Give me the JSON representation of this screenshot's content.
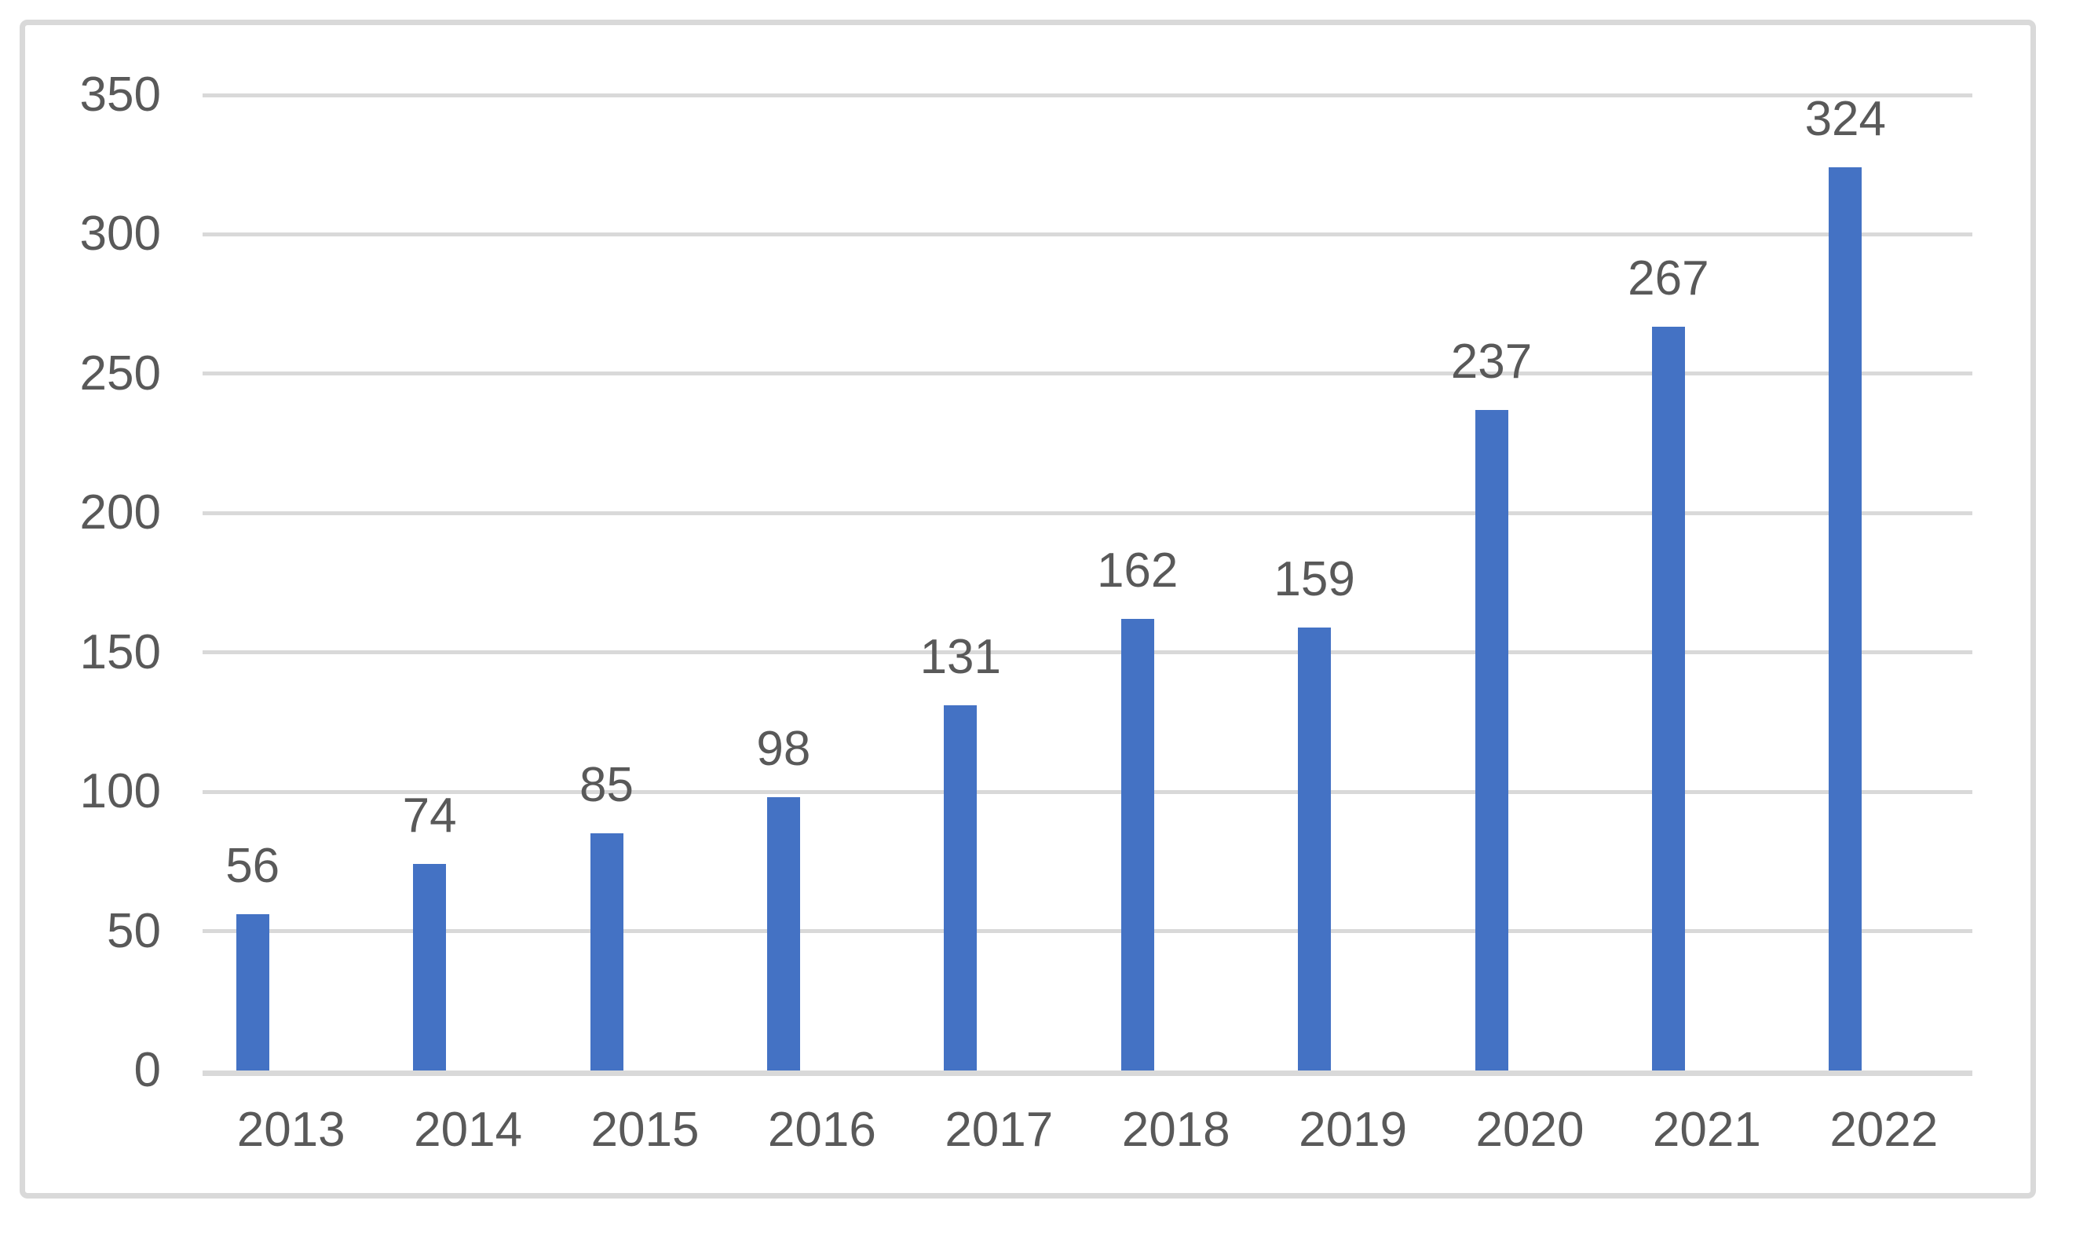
{
  "chart_data": {
    "type": "bar",
    "title": "",
    "xlabel": "",
    "ylabel": "",
    "categories": [
      "2013",
      "2014",
      "2015",
      "2016",
      "2017",
      "2018",
      "2019",
      "2020",
      "2021",
      "2022"
    ],
    "values": [
      56,
      74,
      85,
      98,
      131,
      162,
      159,
      237,
      267,
      324
    ],
    "data_labels_shown": true,
    "ylim": [
      0,
      350
    ],
    "yticks": [
      0,
      50,
      100,
      150,
      200,
      250,
      300,
      350
    ],
    "grid": "horizontal",
    "legend": "none",
    "colors": {
      "bar": "#4472C4",
      "gridline": "#D9D9D9",
      "axis_line": "#D9D9D9",
      "text": "#595959",
      "border": "#D9D9D9",
      "background": "#FFFFFF"
    }
  }
}
